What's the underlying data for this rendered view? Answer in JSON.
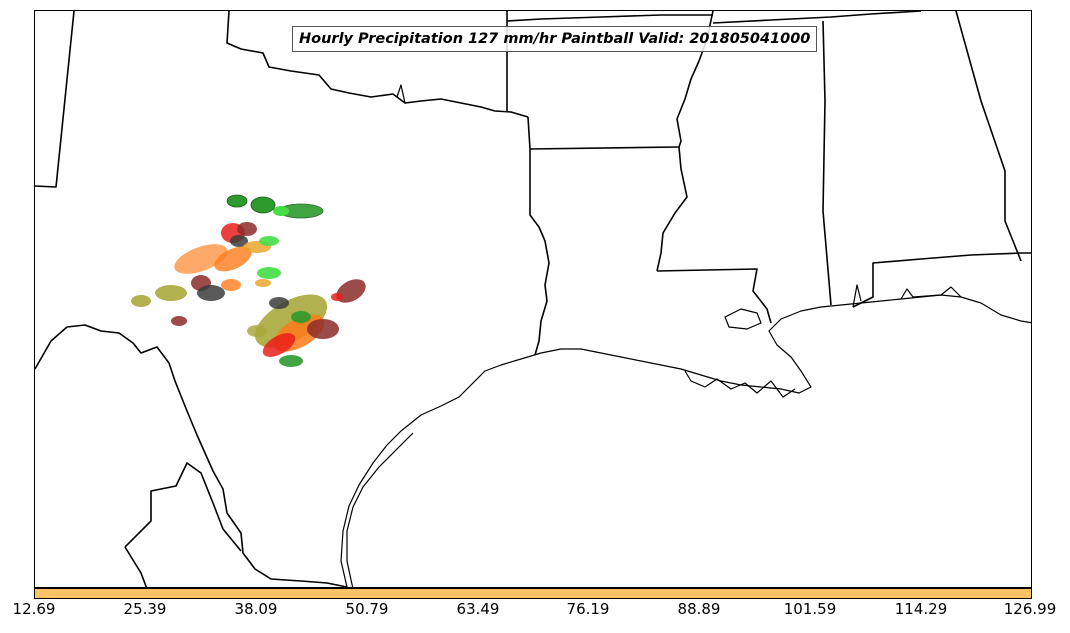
{
  "map": {
    "title": "Hourly Precipitation 127 mm/hr Paintball Valid: 201805041000",
    "region": "South-central United States / Texas Gulf Coast"
  },
  "colorbar": {
    "color": "#FFC266",
    "ticks": [
      "12.69",
      "25.39",
      "38.09",
      "50.79",
      "63.49",
      "76.19",
      "88.89",
      "101.59",
      "114.29",
      "126.99"
    ]
  },
  "paintball_colors": {
    "green": "#2E9A2E",
    "light_green": "#44DD44",
    "red": "#E8201A",
    "orange": "#FF7A1A",
    "light_orange": "#FF9A4D",
    "dark_red": "#8B2C2C",
    "olive": "#A8A83C",
    "dark_gray": "#3C3C3C",
    "gold": "#E8A020"
  }
}
